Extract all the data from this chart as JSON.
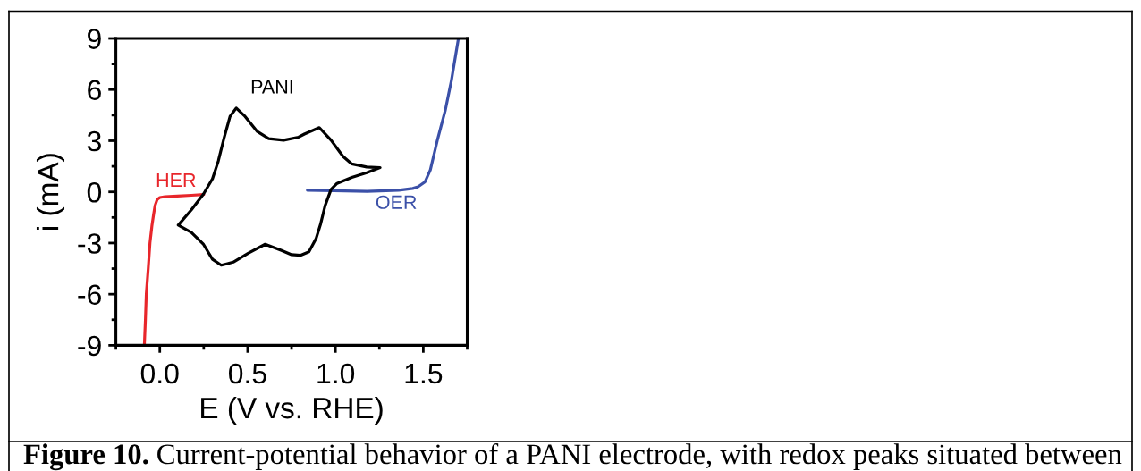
{
  "chart_data": {
    "type": "line",
    "xlabel": "E (V vs. RHE)",
    "ylabel": "i (mA)",
    "xlim": [
      -0.25,
      1.75
    ],
    "xticks": [
      {
        "value": -0.25,
        "label": null
      },
      {
        "value": 0,
        "label": "0.0"
      },
      {
        "value": 0.25,
        "label": null
      },
      {
        "value": 0.5,
        "label": "0.5"
      },
      {
        "value": 0.75,
        "label": null
      },
      {
        "value": 1,
        "label": "1.0"
      },
      {
        "value": 1.25,
        "label": null
      },
      {
        "value": 1.5,
        "label": "1.5"
      },
      {
        "value": 1.75,
        "label": null
      }
    ],
    "ylim": [
      -9,
      9
    ],
    "yticks": [
      -9,
      {
        "value": -7.5,
        "label": null
      },
      -6,
      {
        "value": -4.5,
        "label": null
      },
      -3,
      {
        "value": -1.5,
        "label": null
      },
      0,
      {
        "value": 1.5,
        "label": null
      },
      3,
      {
        "value": 4.5,
        "label": null
      },
      6,
      {
        "value": 7.5,
        "label": null
      },
      9
    ],
    "series": [
      {
        "name": "HER",
        "color": "#e8262b",
        "x": [
          -0.088,
          -0.082,
          -0.077,
          -0.066,
          -0.056,
          -0.045,
          -0.035,
          -0.027,
          -0.015,
          0.0,
          0.03,
          0.1,
          0.18,
          0.25
        ],
        "values": [
          -9,
          -7.5,
          -6,
          -4.5,
          -3,
          -2,
          -1.3,
          -0.8,
          -0.45,
          -0.33,
          -0.28,
          -0.25,
          -0.2,
          -0.15
        ]
      },
      {
        "name": "OER",
        "color": "#3b50a8",
        "x": [
          0.84,
          0.99,
          1.18,
          1.36,
          1.44,
          1.47,
          1.51,
          1.54,
          1.58,
          1.625,
          1.66,
          1.7
        ],
        "values": [
          0.1,
          0.07,
          0.03,
          0.1,
          0.2,
          0.3,
          0.59,
          1.29,
          3.03,
          4.78,
          6.53,
          9
        ]
      },
      {
        "name": "PANI",
        "color": "#000000",
        "x": [
          0.105,
          0.18,
          0.249,
          0.3,
          0.333,
          0.367,
          0.4,
          0.435,
          0.485,
          0.553,
          0.62,
          0.705,
          0.79,
          0.823,
          0.908,
          0.975,
          1.043,
          1.093,
          1.178,
          1.254,
          1.178,
          1.093,
          1.009,
          0.975,
          0.941,
          0.916,
          0.89,
          0.849,
          0.8,
          0.75,
          0.693,
          0.6,
          0.503,
          0.418,
          0.35,
          0.3,
          0.249,
          0.18,
          0.105,
          0.12
        ],
        "values": [
          -1.95,
          -1.05,
          -0.12,
          0.77,
          1.81,
          3.21,
          4.43,
          4.92,
          4.43,
          3.56,
          3.12,
          3.03,
          3.21,
          3.39,
          3.77,
          3.03,
          2.08,
          1.64,
          1.46,
          1.42,
          1.12,
          0.85,
          0.5,
          0.15,
          -0.81,
          -1.86,
          -2.73,
          -3.52,
          -3.72,
          -3.68,
          -3.44,
          -3.07,
          -3.6,
          -4.12,
          -4.3,
          -3.95,
          -3.08,
          -2.38,
          -1.95,
          -1.77
        ]
      }
    ],
    "annotations": [
      "Figure 10.",
      "Current-potential behavior of a PANI electrode, with redox peaks situated between"
    ]
  }
}
